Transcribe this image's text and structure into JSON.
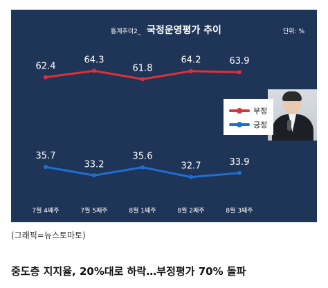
{
  "chart_data": {
    "type": "line",
    "title_prefix": "통계추이2_",
    "title": "국정운영평가 추이",
    "unit": "단위: %",
    "categories": [
      "7월 4째주",
      "7월 5째주",
      "8월 1째주",
      "8월 2째주",
      "8월 3째주"
    ],
    "series": [
      {
        "name": "부정",
        "values": [
          62.4,
          64.3,
          61.8,
          64.2,
          63.9
        ],
        "color": "#e0303a"
      },
      {
        "name": "긍정",
        "values": [
          35.7,
          33.2,
          35.6,
          32.7,
          33.9
        ],
        "color": "#1e6fd0"
      }
    ],
    "legend_position": "right"
  },
  "caption": "(그래픽=뉴스토마토)",
  "headline": "중도층 지지율, 20%대로 하락…부정평가 70% 돌파"
}
